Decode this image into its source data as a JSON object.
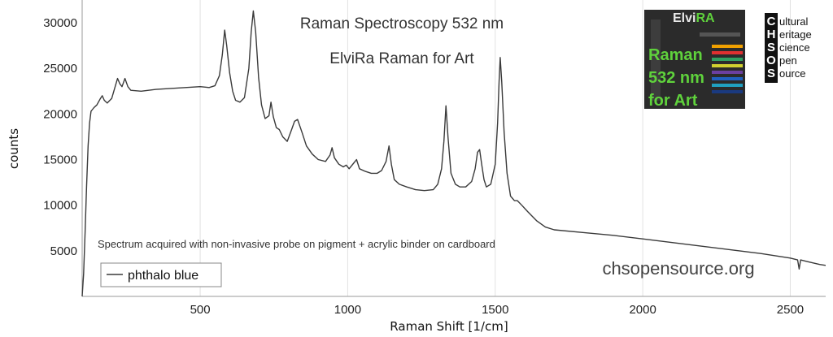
{
  "chart_data": {
    "type": "line",
    "title": "Raman Spectroscopy 532 nm",
    "subtitle": "ElviRa Raman for Art",
    "xlabel": "Raman Shift [1/cm]",
    "ylabel": "counts",
    "xlim": [
      100,
      2620
    ],
    "ylim": [
      0,
      32500
    ],
    "x_ticks": [
      500,
      1000,
      1500,
      2000,
      2500
    ],
    "x_tick_labels": [
      "500",
      "1000",
      "1500",
      "2000",
      "2500"
    ],
    "y_ticks": [
      5000,
      10000,
      15000,
      20000,
      25000,
      30000
    ],
    "y_tick_labels": [
      "5000",
      "10000",
      "15000",
      "20000",
      "25000",
      "30000"
    ],
    "grid": "vertical",
    "legend_position": "bottom-left",
    "annotation": "Spectrum acquired with non-invasive probe on pigment + acrylic binder on cardboard",
    "website": "chsopensource.org",
    "series": [
      {
        "name": "phthalo blue",
        "color": "#3a3a3a",
        "points": [
          [
            100,
            0
          ],
          [
            105,
            2500
          ],
          [
            110,
            7000
          ],
          [
            115,
            12000
          ],
          [
            120,
            16500
          ],
          [
            125,
            19000
          ],
          [
            130,
            20300
          ],
          [
            140,
            20700
          ],
          [
            150,
            21000
          ],
          [
            160,
            21600
          ],
          [
            168,
            22000
          ],
          [
            175,
            21500
          ],
          [
            185,
            21200
          ],
          [
            200,
            21700
          ],
          [
            210,
            22800
          ],
          [
            220,
            23900
          ],
          [
            228,
            23300
          ],
          [
            235,
            23000
          ],
          [
            245,
            23900
          ],
          [
            255,
            23000
          ],
          [
            265,
            22600
          ],
          [
            300,
            22500
          ],
          [
            350,
            22700
          ],
          [
            400,
            22800
          ],
          [
            450,
            22900
          ],
          [
            500,
            23000
          ],
          [
            530,
            22900
          ],
          [
            550,
            23100
          ],
          [
            565,
            24200
          ],
          [
            575,
            26500
          ],
          [
            583,
            29200
          ],
          [
            590,
            27500
          ],
          [
            600,
            24500
          ],
          [
            610,
            22500
          ],
          [
            620,
            21500
          ],
          [
            635,
            21300
          ],
          [
            650,
            21800
          ],
          [
            665,
            25000
          ],
          [
            673,
            29000
          ],
          [
            680,
            31300
          ],
          [
            688,
            29000
          ],
          [
            698,
            24000
          ],
          [
            708,
            21000
          ],
          [
            720,
            19500
          ],
          [
            733,
            19800
          ],
          [
            740,
            21300
          ],
          [
            748,
            19700
          ],
          [
            758,
            18500
          ],
          [
            768,
            18300
          ],
          [
            780,
            17500
          ],
          [
            795,
            17000
          ],
          [
            810,
            18300
          ],
          [
            820,
            19200
          ],
          [
            830,
            19400
          ],
          [
            845,
            18000
          ],
          [
            860,
            16500
          ],
          [
            880,
            15600
          ],
          [
            900,
            15000
          ],
          [
            925,
            14800
          ],
          [
            940,
            15500
          ],
          [
            947,
            16300
          ],
          [
            955,
            15200
          ],
          [
            970,
            14500
          ],
          [
            985,
            14200
          ],
          [
            995,
            14400
          ],
          [
            1005,
            14000
          ],
          [
            1020,
            14600
          ],
          [
            1030,
            15000
          ],
          [
            1040,
            14000
          ],
          [
            1060,
            13700
          ],
          [
            1080,
            13500
          ],
          [
            1100,
            13500
          ],
          [
            1115,
            13800
          ],
          [
            1130,
            14800
          ],
          [
            1140,
            16500
          ],
          [
            1148,
            14500
          ],
          [
            1158,
            12800
          ],
          [
            1175,
            12300
          ],
          [
            1200,
            12000
          ],
          [
            1230,
            11700
          ],
          [
            1260,
            11600
          ],
          [
            1290,
            11700
          ],
          [
            1305,
            12300
          ],
          [
            1318,
            14000
          ],
          [
            1326,
            17000
          ],
          [
            1333,
            20900
          ],
          [
            1340,
            17500
          ],
          [
            1350,
            13500
          ],
          [
            1365,
            12300
          ],
          [
            1380,
            12000
          ],
          [
            1400,
            12000
          ],
          [
            1420,
            12600
          ],
          [
            1432,
            14000
          ],
          [
            1440,
            15800
          ],
          [
            1447,
            16100
          ],
          [
            1454,
            14500
          ],
          [
            1462,
            12800
          ],
          [
            1470,
            12000
          ],
          [
            1485,
            12300
          ],
          [
            1500,
            14500
          ],
          [
            1508,
            19000
          ],
          [
            1513,
            23500
          ],
          [
            1517,
            26200
          ],
          [
            1522,
            23500
          ],
          [
            1530,
            18000
          ],
          [
            1540,
            13500
          ],
          [
            1552,
            11000
          ],
          [
            1565,
            10500
          ],
          [
            1575,
            10500
          ],
          [
            1590,
            10000
          ],
          [
            1610,
            9300
          ],
          [
            1640,
            8300
          ],
          [
            1670,
            7600
          ],
          [
            1700,
            7300
          ],
          [
            1800,
            7000
          ],
          [
            1900,
            6700
          ],
          [
            2000,
            6300
          ],
          [
            2100,
            5900
          ],
          [
            2200,
            5500
          ],
          [
            2300,
            5100
          ],
          [
            2400,
            4700
          ],
          [
            2500,
            4200
          ],
          [
            2525,
            4000
          ],
          [
            2530,
            3000
          ],
          [
            2535,
            4000
          ],
          [
            2560,
            3800
          ],
          [
            2600,
            3500
          ],
          [
            2620,
            3400
          ]
        ]
      }
    ]
  },
  "logo_elvira": {
    "name": "ElviRA",
    "name_accent": "RA",
    "line1": "Raman",
    "line2": "532 nm",
    "line3": "for Art"
  },
  "logo_chsos": {
    "letters": [
      "C",
      "H",
      "S",
      "O",
      "S"
    ],
    "words": [
      "ultural",
      "eritage",
      "cience",
      "pen",
      "ource"
    ]
  }
}
